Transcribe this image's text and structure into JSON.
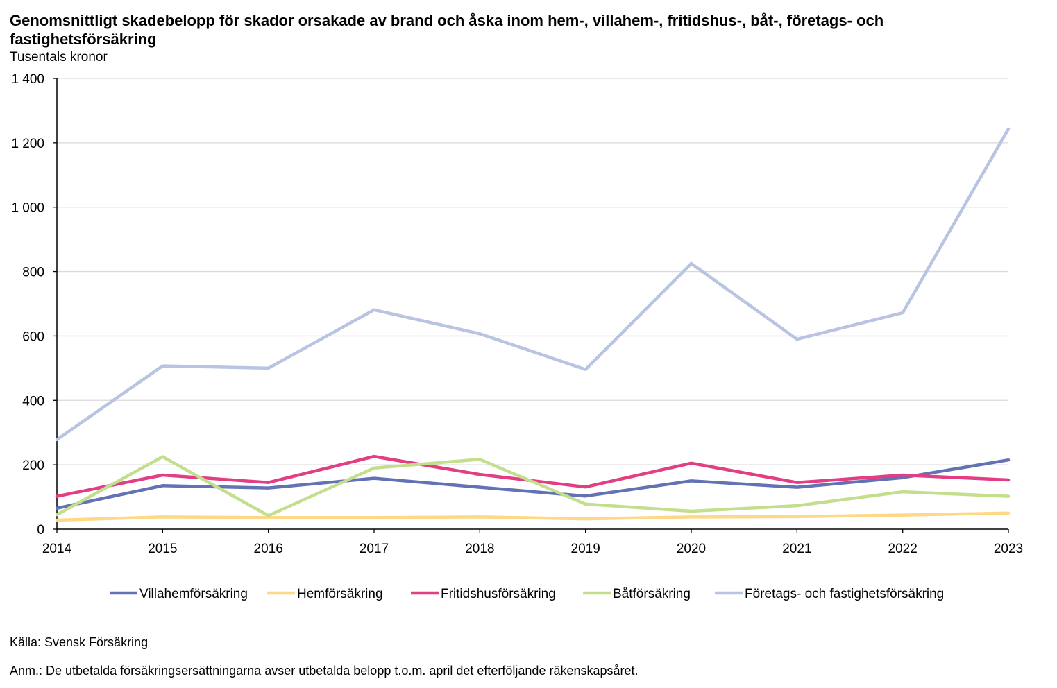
{
  "chart_data": {
    "type": "line",
    "title": "Genomsnittligt skadebelopp för skador orsakade av brand och åska inom hem-, villahem-, fritidshus-, båt-, företags- och fastighetsförsäkring",
    "ylabel": "Tusentals kronor",
    "xlabel": "",
    "ylim": [
      0,
      1400
    ],
    "yticks": [
      0,
      200,
      400,
      600,
      800,
      1000,
      1200,
      1400
    ],
    "ytick_labels": [
      "0",
      "200",
      "400",
      "600",
      "800",
      "1 000",
      "1 200",
      "1 400"
    ],
    "categories": [
      "2014",
      "2015",
      "2016",
      "2017",
      "2018",
      "2019",
      "2020",
      "2021",
      "2022",
      "2023"
    ],
    "grid": true,
    "legend_position": "bottom",
    "series": [
      {
        "name": "Villahemförsäkring",
        "color": "#6272b5",
        "values": [
          65,
          135,
          128,
          158,
          130,
          103,
          150,
          130,
          160,
          215
        ]
      },
      {
        "name": "Hemförsäkring",
        "color": "#fdd886",
        "values": [
          28,
          38,
          36,
          36,
          38,
          32,
          38,
          39,
          44,
          50
        ]
      },
      {
        "name": "Fritidshusförsäkring",
        "color": "#e23e84",
        "values": [
          102,
          168,
          145,
          226,
          170,
          131,
          205,
          145,
          168,
          153
        ]
      },
      {
        "name": "Båtförsäkring",
        "color": "#c3df8d",
        "values": [
          45,
          225,
          42,
          190,
          217,
          78,
          56,
          73,
          116,
          102
        ]
      },
      {
        "name": "Företags- och fastighetsförsäkring",
        "color": "#b9c4e2",
        "values": [
          278,
          507,
          500,
          681,
          607,
          496,
          825,
          590,
          672,
          1243
        ]
      }
    ]
  },
  "source": "Källa: Svensk Försäkring",
  "note": "Anm.: De utbetalda försäkringsersättningarna avser utbetalda belopp t.o.m. april det efterföljande räkenskapsåret."
}
